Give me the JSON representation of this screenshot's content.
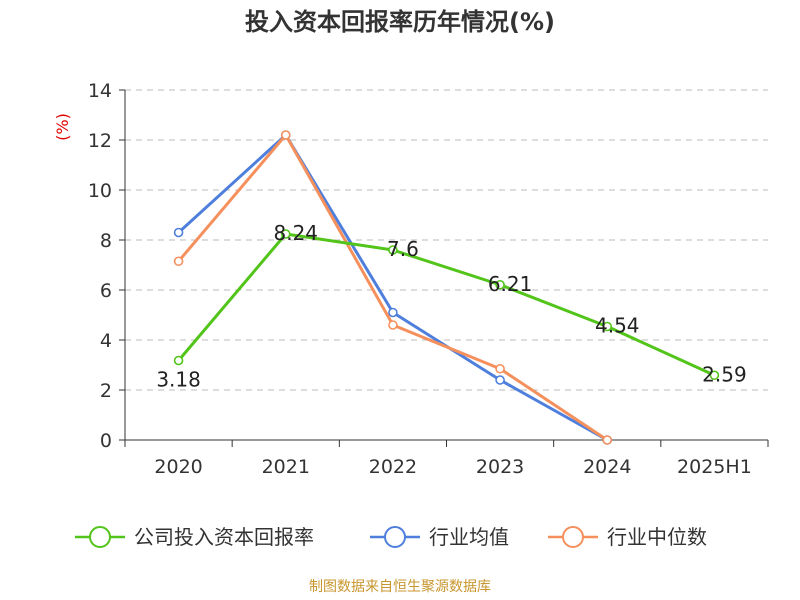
{
  "title": "投入资本回报率历年情况(%)",
  "source": "制图数据来自恒生聚源数据库",
  "chart_data": {
    "type": "line",
    "title": "投入资本回报率历年情况(%)",
    "ylabel": "(%)",
    "xlabel": "",
    "categories": [
      "2020",
      "2021",
      "2022",
      "2023",
      "2024",
      "2025H1"
    ],
    "ylim": [
      0,
      14
    ],
    "yticks": [
      "0",
      "2",
      "4",
      "6",
      "8",
      "10",
      "12",
      "14"
    ],
    "grid": true,
    "legend_position": "bottom",
    "series": [
      {
        "name": "公司投入资本回报率",
        "color": "#52c41a",
        "values": [
          3.18,
          8.24,
          7.6,
          6.21,
          4.54,
          2.59
        ],
        "labels": [
          "3.18",
          "8.24",
          "7.6",
          "6.21",
          "4.54",
          "2.59"
        ]
      },
      {
        "name": "行业均值",
        "color": "#4f7fdc",
        "values": [
          8.3,
          12.2,
          5.1,
          2.4,
          0.0,
          null
        ]
      },
      {
        "name": "行业中位数",
        "color": "#f5905d",
        "values": [
          7.15,
          12.2,
          4.6,
          2.85,
          0.0,
          null
        ]
      }
    ]
  }
}
